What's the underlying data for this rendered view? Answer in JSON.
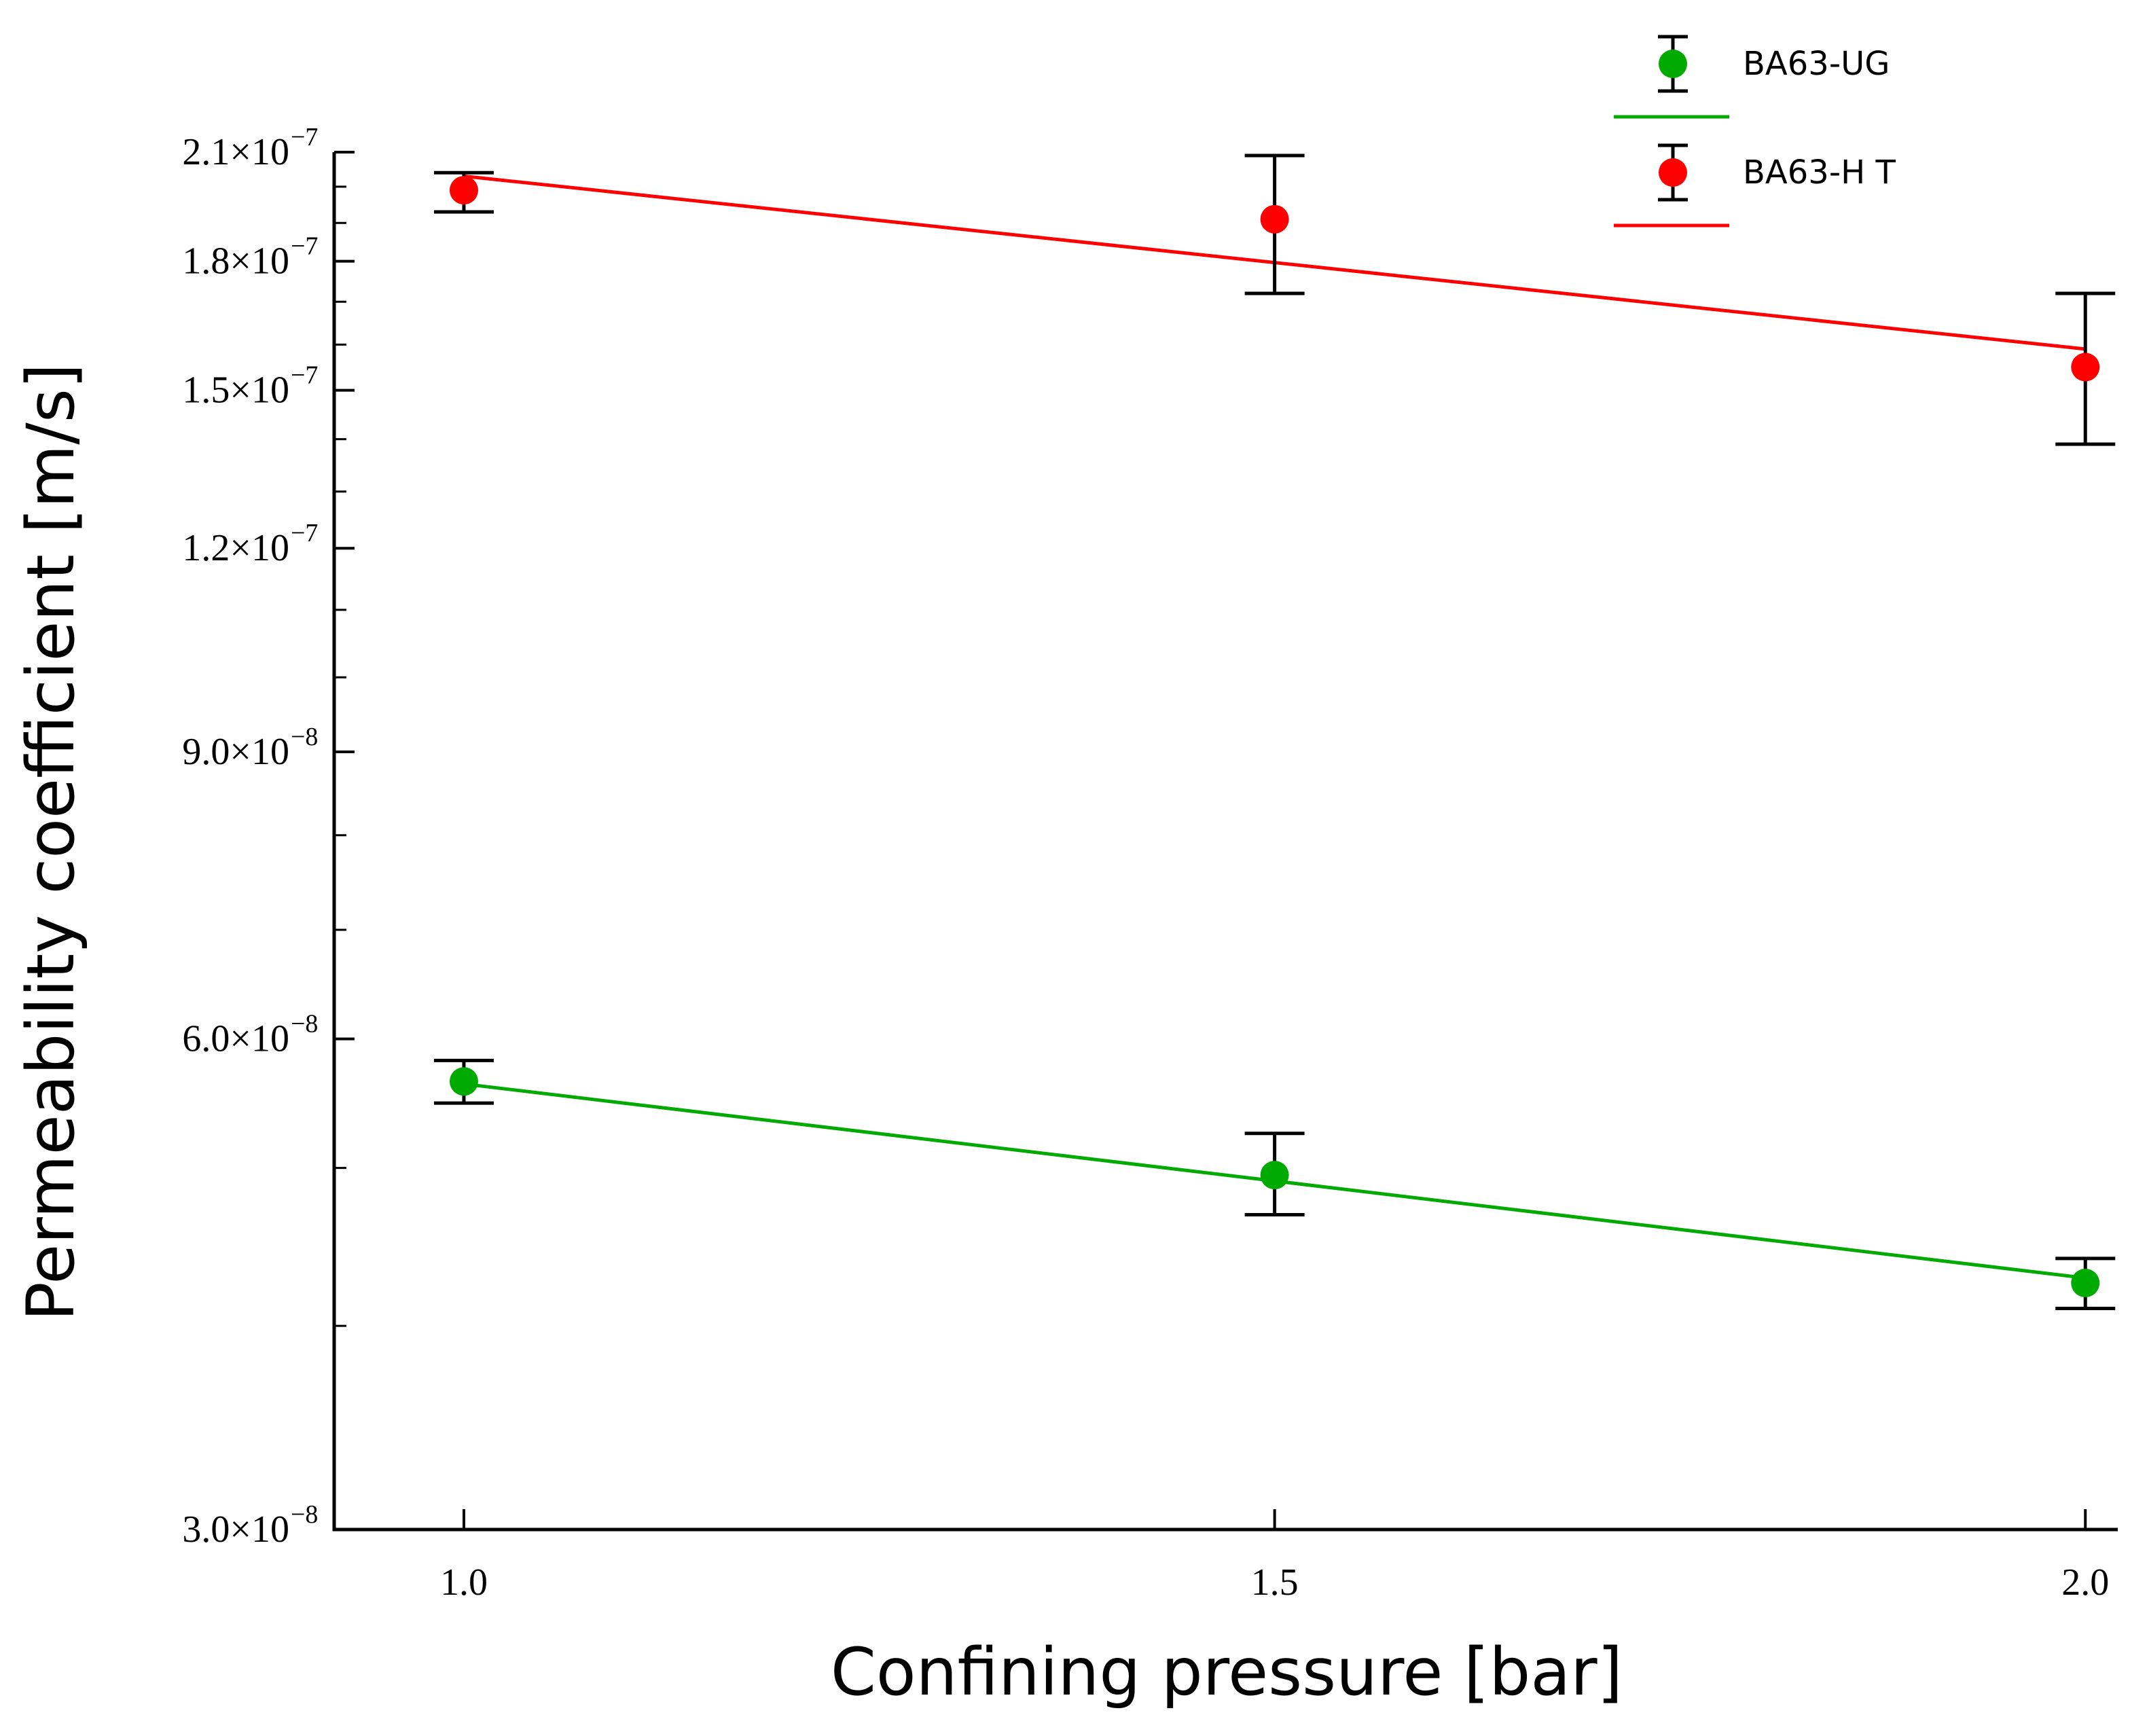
{
  "chart_data": {
    "type": "scatter",
    "title": "",
    "xlabel": "Confining pressure [bar]",
    "ylabel": "Permeability coefficient [m/s]",
    "y_scale": "log",
    "xlim": [
      0.92,
      2.02
    ],
    "ylim": [
      3e-08,
      2.1e-07
    ],
    "x_ticks": [
      1.0,
      1.5,
      2.0
    ],
    "x_tick_labels": [
      "1.0",
      "1.5",
      "2.0"
    ],
    "y_ticks": [
      {
        "value": 3e-08,
        "mantissa": "3.0×10",
        "exponent": "−8"
      },
      {
        "value": 6e-08,
        "mantissa": "6.0×10",
        "exponent": "−8"
      },
      {
        "value": 9e-08,
        "mantissa": "9.0×10",
        "exponent": "−8"
      },
      {
        "value": 1.2e-07,
        "mantissa": "1.2×10",
        "exponent": "−7"
      },
      {
        "value": 1.5e-07,
        "mantissa": "1.5×10",
        "exponent": "−7"
      },
      {
        "value": 1.8e-07,
        "mantissa": "1.8×10",
        "exponent": "−7"
      },
      {
        "value": 2.1e-07,
        "mantissa": "2.1×10",
        "exponent": "−7"
      }
    ],
    "y_minor_ticks": [
      4e-08,
      5e-08,
      7e-08,
      8e-08,
      1e-07,
      1.1e-07,
      1.3e-07,
      1.4e-07,
      1.6e-07,
      1.7e-07,
      1.9e-07,
      2e-07
    ],
    "grid": false,
    "legend_position": "top-right",
    "series": [
      {
        "name": "BA63-UG",
        "color": "#00aa00",
        "points": [
          {
            "x": 1.0,
            "y": 5.65e-08,
            "err_low": 5.48e-08,
            "err_high": 5.82e-08
          },
          {
            "x": 1.5,
            "y": 4.95e-08,
            "err_low": 4.68e-08,
            "err_high": 5.25e-08
          },
          {
            "x": 2.0,
            "y": 4.25e-08,
            "err_low": 4.1e-08,
            "err_high": 4.4e-08
          }
        ],
        "fit_line": [
          {
            "x": 1.0,
            "y": 5.63e-08
          },
          {
            "x": 2.0,
            "y": 4.28e-08
          }
        ]
      },
      {
        "name": "BA63-HT",
        "color": "#ff0000",
        "points": [
          {
            "x": 1.0,
            "y": 1.99e-07,
            "err_low": 1.93e-07,
            "err_high": 2.04e-07
          },
          {
            "x": 1.5,
            "y": 1.91e-07,
            "err_low": 1.72e-07,
            "err_high": 2.09e-07
          },
          {
            "x": 2.0,
            "y": 1.55e-07,
            "err_low": 1.39e-07,
            "err_high": 1.72e-07
          }
        ],
        "fit_line": [
          {
            "x": 1.0,
            "y": 2.03e-07
          },
          {
            "x": 2.0,
            "y": 1.59e-07
          }
        ]
      }
    ]
  },
  "legend": {
    "items": [
      {
        "label": "BA63-UG",
        "color": "#00aa00"
      },
      {
        "label": "BA63-H T",
        "color": "#ff0000"
      }
    ]
  }
}
